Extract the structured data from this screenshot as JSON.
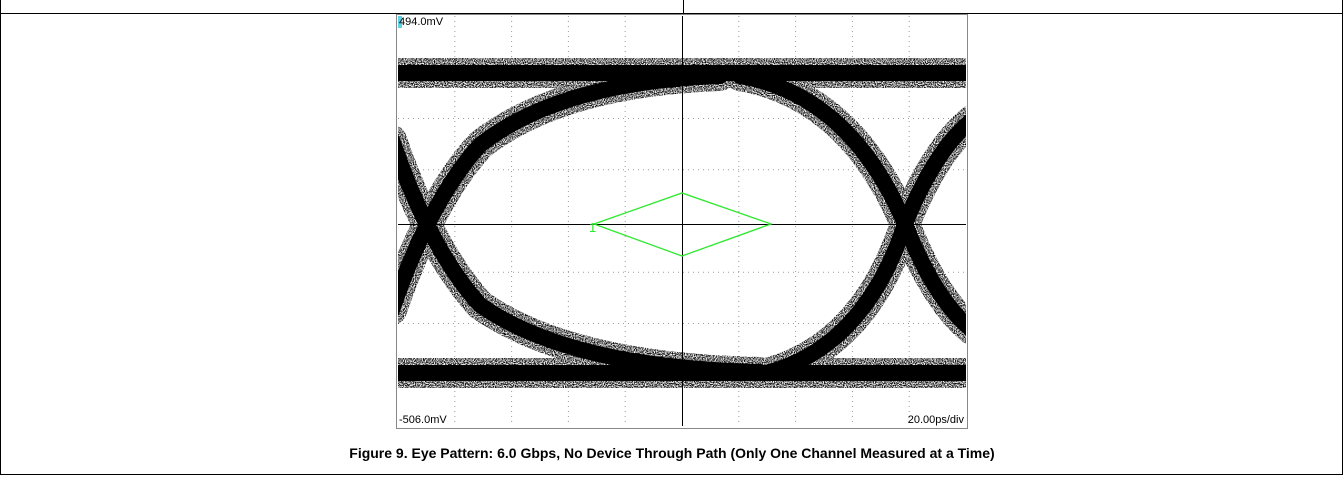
{
  "figure": {
    "top_label": "494.0mV",
    "bottom_label": "-506.0mV",
    "timebase": "20.00ps/div",
    "mask_label": "1",
    "caption": "Figure 9. Eye Pattern: 6.0 Gbps, No Device Through Path (Only One Channel Measured at a Time)"
  }
}
